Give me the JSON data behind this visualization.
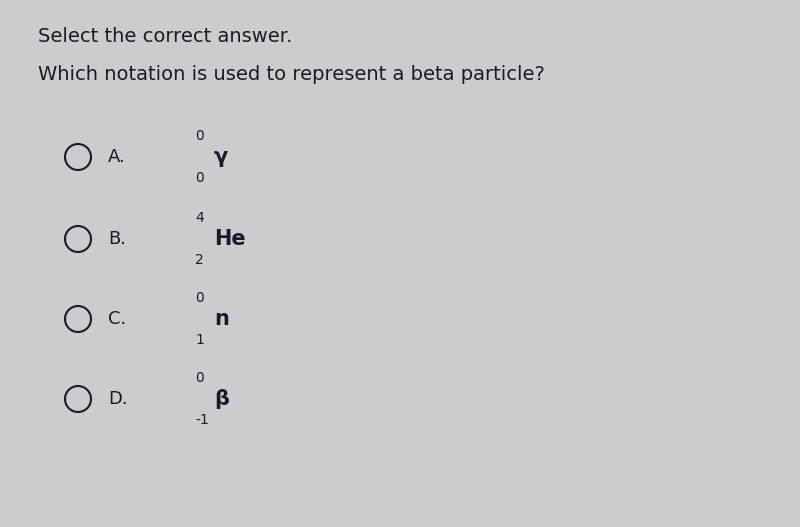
{
  "background_color": "#cccccc",
  "title_line1": "Select the correct answer.",
  "question": "Which notation is used to represent a beta particle?",
  "options": [
    {
      "label": "A.",
      "symbol": "γ",
      "superscript": "0",
      "subscript": "0"
    },
    {
      "label": "B.",
      "symbol": "He",
      "superscript": "4",
      "subscript": "2"
    },
    {
      "label": "C.",
      "symbol": "n",
      "superscript": "0",
      "subscript": "1"
    },
    {
      "label": "D.",
      "symbol": "β",
      "superscript": "0",
      "subscript": "-1"
    }
  ],
  "text_color": "#1a1a2e",
  "circle_color": "#1a1a2e",
  "font_size_title": 14,
  "font_size_question": 14,
  "font_size_label": 13,
  "font_size_symbol": 15,
  "font_size_script": 10
}
